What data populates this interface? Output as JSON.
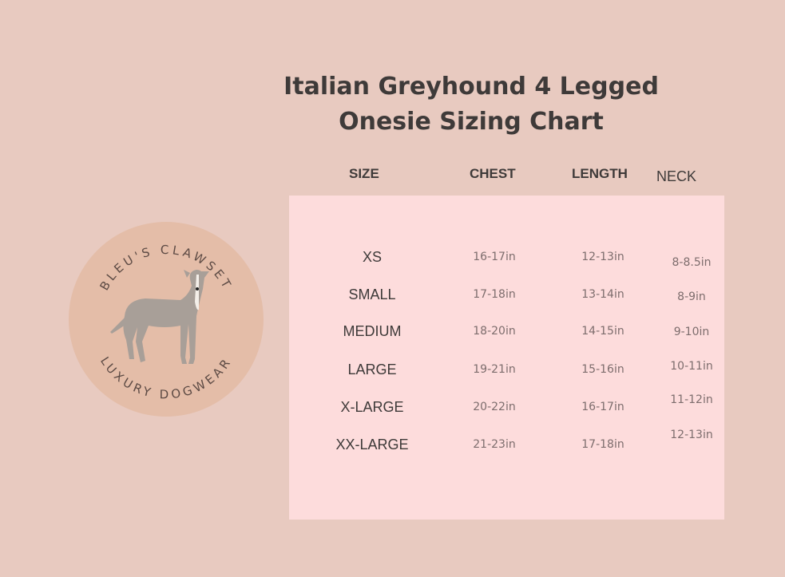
{
  "title": {
    "line1": "Italian Greyhound 4 Legged",
    "line2": "Onesie Sizing Chart"
  },
  "columns": [
    "SIZE",
    "CHEST",
    "LENGTH",
    "NECK"
  ],
  "rows": [
    {
      "size": "XS",
      "chest": "16-17in",
      "length": "12-13in",
      "neck": "8-8.5in"
    },
    {
      "size": "SMALL",
      "chest": "17-18in",
      "length": "13-14in",
      "neck": "8-9in"
    },
    {
      "size": "MEDIUM",
      "chest": "18-20in",
      "length": "14-15in",
      "neck": "9-10in"
    },
    {
      "size": "LARGE",
      "chest": "19-21in",
      "length": "15-16in",
      "neck": "10-11in"
    },
    {
      "size": "X-LARGE",
      "chest": "20-22in",
      "length": "16-17in",
      "neck": "11-12in"
    },
    {
      "size": "XX-LARGE",
      "chest": "21-23in",
      "length": "17-18in",
      "neck": "12-13in"
    }
  ],
  "logo": {
    "top_text": "BLEU'S CLAWSET",
    "bottom_text": "LUXURY DOGWEAR"
  },
  "colors": {
    "background": "#e8cac0",
    "panel": "#fddcdc",
    "logo_circle": "#e4bda8",
    "text": "#3e3a39"
  }
}
